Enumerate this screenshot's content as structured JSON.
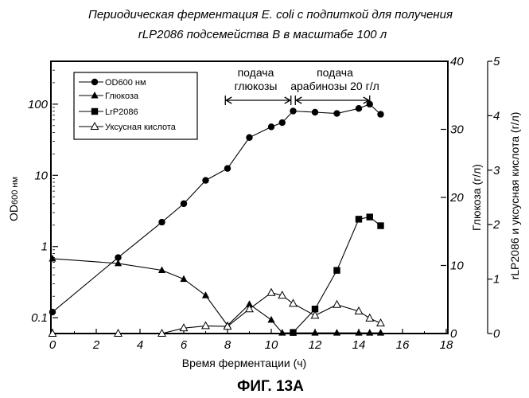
{
  "chart_data": {
    "type": "line",
    "title": "Периодическая ферментация E. coli с подпиткой для получения",
    "subtitle": "rLP2086 подсемейства В в масштабе 100 л",
    "figure_label": "ФИГ. 13А",
    "xlabel": "Время ферментации (ч)",
    "xlim": [
      0,
      18
    ],
    "xticks": [
      0,
      2,
      4,
      6,
      8,
      10,
      12,
      14,
      16,
      18
    ],
    "y_left": {
      "label": "OD600 нм",
      "label_main": "OD",
      "label_sub": "600 нм",
      "scale": "log",
      "ylim": [
        0.06,
        400
      ],
      "ticks": [
        {
          "value": 0.1,
          "label": "0.1"
        },
        {
          "value": 1,
          "label": "1"
        },
        {
          "value": 10,
          "label": "10"
        },
        {
          "value": 100,
          "label": "100"
        }
      ]
    },
    "y_right1": {
      "label": "Глюкоза (г/л)",
      "ylim": [
        0,
        40
      ],
      "ticks": [
        0,
        10,
        20,
        30,
        40
      ]
    },
    "y_right2": {
      "label": "rLP2086 и уксусная кислота (г/л)",
      "ylim": [
        0,
        5
      ],
      "ticks": [
        0,
        1,
        2,
        3,
        4,
        5
      ]
    },
    "annotations": [
      {
        "lines": [
          "подача",
          "глюкозы"
        ],
        "x_start": 7.9,
        "x_end": 10.9
      },
      {
        "lines": [
          "подача",
          "арабинозы 20 г/л"
        ],
        "x_start": 11.1,
        "x_end": 14.5
      }
    ],
    "series": [
      {
        "name": "OD600 нм",
        "legend": "OD600 нм",
        "axis": "y_left",
        "marker": "circle",
        "x": [
          0,
          3,
          5,
          6,
          7,
          8,
          9,
          10,
          10.5,
          11,
          12,
          13,
          14,
          14.5,
          15
        ],
        "values": [
          0.12,
          0.7,
          2.2,
          4.0,
          8.5,
          12.5,
          34,
          48,
          55,
          80,
          77,
          74,
          87,
          100,
          72
        ]
      },
      {
        "name": "Глюкоза",
        "legend": "Глюкоза",
        "axis": "y_right1",
        "marker": "triangle",
        "x": [
          0,
          3,
          5,
          6,
          7,
          8,
          9,
          10,
          10.5,
          11,
          12,
          13,
          14,
          14.5,
          15
        ],
        "values": [
          11,
          10.3,
          9.3,
          8,
          5.6,
          1.2,
          4.3,
          2,
          0.1,
          0.1,
          0.1,
          0.1,
          0.1,
          0.1,
          0.1
        ]
      },
      {
        "name": "rLP2086",
        "legend": "LrP2086",
        "axis": "y_right2",
        "marker": "square",
        "x": [
          11,
          12,
          13,
          14,
          14.5,
          15
        ],
        "values": [
          0.02,
          0.45,
          1.16,
          2.1,
          2.14,
          1.98
        ]
      },
      {
        "name": "Уксусная кислота",
        "legend": "Уксусная кислота",
        "axis": "y_right2",
        "marker": "open-triangle",
        "x": [
          0,
          3,
          5,
          6,
          7,
          8,
          9,
          10,
          10.5,
          11,
          12,
          13,
          14,
          14.5,
          15
        ],
        "values": [
          0,
          0,
          0,
          0.1,
          0.14,
          0.13,
          0.45,
          0.75,
          0.7,
          0.55,
          0.33,
          0.53,
          0.41,
          0.28,
          0.19
        ]
      }
    ]
  }
}
